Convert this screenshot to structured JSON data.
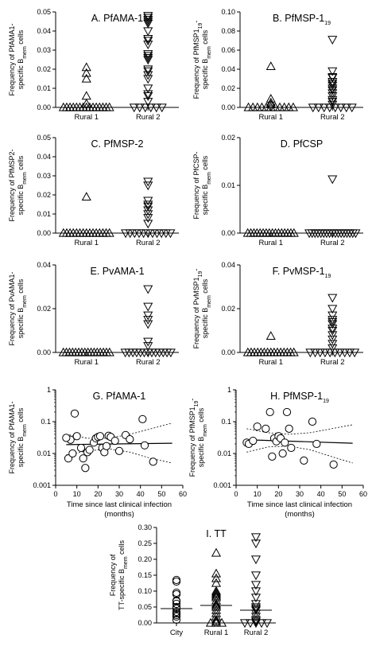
{
  "chart_data": [
    {
      "type": "scatter",
      "title": "A. PfAMA-1",
      "ylabel_line1": "Frequency of PfAMA1-",
      "ylabel_line2": "specific B",
      "ylabel_sub": "mem",
      "ylabel_tail": " cells",
      "ylim": [
        0,
        0.05
      ],
      "yticks": [
        "0.00",
        "0.01",
        "0.02",
        "0.03",
        "0.04",
        "0.05"
      ],
      "categories": [
        "Rural 1",
        "Rural 2"
      ],
      "markers": [
        "triangle-up",
        "triangle-down"
      ],
      "series": [
        {
          "values": [
            0.021,
            0.018,
            0.015,
            0.006,
            0.002,
            0.0,
            0.0,
            0.0,
            0.0,
            0.0,
            0.0,
            0.0,
            0.0,
            0.0,
            0.0,
            0.0,
            0.0,
            0.0,
            0.0,
            0.0
          ]
        },
        {
          "values": [
            0.048,
            0.047,
            0.046,
            0.045,
            0.044,
            0.04,
            0.036,
            0.035,
            0.033,
            0.028,
            0.027,
            0.026,
            0.025,
            0.02,
            0.019,
            0.017,
            0.015,
            0.01,
            0.007,
            0.006,
            0.003,
            0.0,
            0.0,
            0.0,
            0.0,
            0.0,
            0.0
          ]
        }
      ]
    },
    {
      "type": "scatter",
      "title": "B. PfMSP-1",
      "title_sub": "19",
      "ylabel_line1": "Frequency of PfMSP1",
      "ylabel_line1_sub": "19",
      "ylabel_line1_tail": "-",
      "ylabel_line2": "specific B",
      "ylabel_sub": "mem",
      "ylabel_tail": " cells",
      "ylim": [
        0,
        0.1
      ],
      "yticks": [
        "0.00",
        "0.02",
        "0.04",
        "0.06",
        "0.08",
        "0.10"
      ],
      "categories": [
        "Rural 1",
        "Rural 2"
      ],
      "markers": [
        "triangle-up",
        "triangle-down"
      ],
      "series": [
        {
          "values": [
            0.043,
            0.009,
            0.005,
            0.003,
            0.0,
            0.0,
            0.0,
            0.0,
            0.0,
            0.0,
            0.0,
            0.0,
            0.0,
            0.0,
            0.0
          ]
        },
        {
          "values": [
            0.071,
            0.038,
            0.032,
            0.031,
            0.027,
            0.025,
            0.023,
            0.02,
            0.018,
            0.015,
            0.012,
            0.008,
            0.006,
            0.003,
            0.0,
            0.0,
            0.0,
            0.0,
            0.0,
            0.0,
            0.0,
            0.0
          ]
        }
      ]
    },
    {
      "type": "scatter",
      "title": "C. PfMSP-2",
      "ylabel_line1": "Frequency of PfMSP2-",
      "ylabel_line2": "specific B",
      "ylabel_sub": "mem",
      "ylabel_tail": " cells",
      "ylim": [
        0,
        0.05
      ],
      "yticks": [
        "0.00",
        "0.01",
        "0.02",
        "0.03",
        "0.04",
        "0.05"
      ],
      "categories": [
        "Rural 1",
        "Rural 2"
      ],
      "markers": [
        "triangle-up",
        "triangle-down"
      ],
      "series": [
        {
          "values": [
            0.019,
            0.0,
            0.0,
            0.0,
            0.0,
            0.0,
            0.0,
            0.0,
            0.0,
            0.0,
            0.0,
            0.0,
            0.0,
            0.0,
            0.0,
            0.0
          ]
        },
        {
          "values": [
            0.027,
            0.025,
            0.017,
            0.015,
            0.014,
            0.012,
            0.01,
            0.008,
            0.005,
            0.0,
            0.0,
            0.0,
            0.0,
            0.0,
            0.0,
            0.0,
            0.0,
            0.0,
            0.0,
            0.0
          ]
        }
      ]
    },
    {
      "type": "scatter",
      "title": "D. PfCSP",
      "ylabel_line1": "Frequency of PfCSP-",
      "ylabel_line2": "specific B",
      "ylabel_sub": "mem",
      "ylabel_tail": " cells",
      "ylim": [
        0,
        0.02
      ],
      "yticks": [
        "0.00",
        "0.01",
        "0.02"
      ],
      "categories": [
        "Rural 1",
        "Rural 2"
      ],
      "markers": [
        "triangle-up",
        "triangle-down"
      ],
      "series": [
        {
          "values": [
            0.0,
            0.0,
            0.0,
            0.0,
            0.0,
            0.0,
            0.0,
            0.0,
            0.0,
            0.0,
            0.0,
            0.0,
            0.0,
            0.0,
            0.0,
            0.0
          ]
        },
        {
          "values": [
            0.0113,
            0.0,
            0.0,
            0.0,
            0.0,
            0.0,
            0.0,
            0.0,
            0.0,
            0.0,
            0.0,
            0.0,
            0.0,
            0.0,
            0.0,
            0.0,
            0.0,
            0.0
          ]
        }
      ]
    },
    {
      "type": "scatter",
      "title": "E. PvAMA-1",
      "ylabel_line1": "Frequency of PvAMA1-",
      "ylabel_line2": "specific B",
      "ylabel_sub": "mem",
      "ylabel_tail": " cells",
      "ylim": [
        0,
        0.04
      ],
      "yticks": [
        "0.00",
        "0.02",
        "0.04"
      ],
      "categories": [
        "Rural 1",
        "Rural 2"
      ],
      "markers": [
        "triangle-up",
        "triangle-down"
      ],
      "series": [
        {
          "values": [
            0.0,
            0.0,
            0.0,
            0.0,
            0.0,
            0.0,
            0.0,
            0.0,
            0.0,
            0.0,
            0.0,
            0.0,
            0.0,
            0.0,
            0.0,
            0.0
          ]
        },
        {
          "values": [
            0.029,
            0.021,
            0.017,
            0.015,
            0.013,
            0.005,
            0.003,
            0.0,
            0.0,
            0.0,
            0.0,
            0.0,
            0.0,
            0.0,
            0.0,
            0.0,
            0.0,
            0.0,
            0.0,
            0.0
          ]
        }
      ]
    },
    {
      "type": "scatter",
      "title": "F. PvMSP-1",
      "title_sub": "19",
      "ylabel_line1": "Frequency of PvMSP1",
      "ylabel_line1_sub": "19",
      "ylabel_line1_tail": "-",
      "ylabel_line2": "specific B",
      "ylabel_sub": "mem",
      "ylabel_tail": " cells",
      "ylim": [
        0,
        0.04
      ],
      "yticks": [
        "0.00",
        "0.02",
        "0.04"
      ],
      "categories": [
        "Rural 1",
        "Rural 2"
      ],
      "markers": [
        "triangle-up",
        "triangle-down"
      ],
      "series": [
        {
          "values": [
            0.0075,
            0.0,
            0.0,
            0.0,
            0.0,
            0.0,
            0.0,
            0.0,
            0.0,
            0.0,
            0.0,
            0.0,
            0.0,
            0.0,
            0.0,
            0.0
          ]
        },
        {
          "values": [
            0.025,
            0.02,
            0.017,
            0.015,
            0.014,
            0.013,
            0.011,
            0.01,
            0.008,
            0.006,
            0.004,
            0.002,
            0.0,
            0.0,
            0.0,
            0.0,
            0.0,
            0.0,
            0.0,
            0.0,
            0.0,
            0.0
          ]
        }
      ]
    },
    {
      "type": "scatter",
      "title": "G. PfAMA-1",
      "ylabel_line1": "Frequency of PfAMA1-",
      "ylabel_line2": "specific B",
      "ylabel_sub": "mem",
      "ylabel_tail": " cells",
      "xlabel_line1": "Time since last clinical infection",
      "xlabel_line2": "(months)",
      "xlim": [
        0,
        60
      ],
      "xticks": [
        "0",
        "10",
        "20",
        "30",
        "40",
        "50",
        "60"
      ],
      "ylim": [
        0.001,
        1
      ],
      "ylog": true,
      "yticks": [
        "0.001",
        "0.01",
        "0.1",
        "1"
      ],
      "points": [
        [
          7,
          0.027
        ],
        [
          9,
          0.18
        ],
        [
          5,
          0.031
        ],
        [
          6,
          0.007
        ],
        [
          10,
          0.035
        ],
        [
          12,
          0.015
        ],
        [
          13,
          0.007
        ],
        [
          14,
          0.0035
        ],
        [
          15,
          0.011
        ],
        [
          16,
          0.013
        ],
        [
          18,
          0.022
        ],
        [
          19,
          0.03
        ],
        [
          20,
          0.033
        ],
        [
          21,
          0.035
        ],
        [
          22,
          0.015
        ],
        [
          23,
          0.011
        ],
        [
          24,
          0.017
        ],
        [
          25,
          0.036
        ],
        [
          26,
          0.033
        ],
        [
          28,
          0.025
        ],
        [
          30,
          0.012
        ],
        [
          33,
          0.038
        ],
        [
          35,
          0.028
        ],
        [
          41,
          0.12
        ],
        [
          42,
          0.018
        ],
        [
          46,
          0.0055
        ],
        [
          8,
          0.01
        ]
      ],
      "fit": {
        "x": [
          5,
          55
        ],
        "y": [
          0.019,
          0.021
        ]
      },
      "ci_upper": [
        [
          5,
          0.04
        ],
        [
          15,
          0.03
        ],
        [
          25,
          0.03
        ],
        [
          35,
          0.04
        ],
        [
          45,
          0.06
        ],
        [
          55,
          0.09
        ]
      ],
      "ci_lower": [
        [
          5,
          0.009
        ],
        [
          15,
          0.012
        ],
        [
          25,
          0.014
        ],
        [
          35,
          0.011
        ],
        [
          45,
          0.007
        ],
        [
          55,
          0.005
        ]
      ]
    },
    {
      "type": "scatter",
      "title": "H. PfMSP-1",
      "title_sub": "19",
      "ylabel_line1": "Frequency of PfMSP1",
      "ylabel_line1_sub": "19",
      "ylabel_line1_tail": "-",
      "ylabel_line2": "specific B",
      "ylabel_sub": "mem",
      "ylabel_tail": " cells",
      "xlabel_line1": "Time since last clinical infection",
      "xlabel_line2": "(months)",
      "xlim": [
        0,
        60
      ],
      "xticks": [
        "0",
        "10",
        "20",
        "30",
        "40",
        "50",
        "60"
      ],
      "ylim": [
        0.001,
        1
      ],
      "ylog": true,
      "yticks": [
        "0.001",
        "0.01",
        "0.1",
        "1"
      ],
      "points": [
        [
          5,
          0.022
        ],
        [
          6,
          0.02
        ],
        [
          8,
          0.025
        ],
        [
          10,
          0.07
        ],
        [
          14,
          0.06
        ],
        [
          16,
          0.2
        ],
        [
          17,
          0.008
        ],
        [
          18,
          0.03
        ],
        [
          19,
          0.024
        ],
        [
          20,
          0.035
        ],
        [
          21,
          0.03
        ],
        [
          22,
          0.01
        ],
        [
          23,
          0.022
        ],
        [
          24,
          0.2
        ],
        [
          25,
          0.06
        ],
        [
          26,
          0.015
        ],
        [
          32,
          0.006
        ],
        [
          36,
          0.1
        ],
        [
          38,
          0.02
        ],
        [
          46,
          0.0045
        ]
      ],
      "fit": {
        "x": [
          5,
          55
        ],
        "y": [
          0.027,
          0.021
        ]
      },
      "ci_upper": [
        [
          5,
          0.06
        ],
        [
          15,
          0.045
        ],
        [
          25,
          0.04
        ],
        [
          35,
          0.045
        ],
        [
          45,
          0.06
        ],
        [
          55,
          0.08
        ]
      ],
      "ci_lower": [
        [
          5,
          0.011
        ],
        [
          15,
          0.016
        ],
        [
          25,
          0.017
        ],
        [
          35,
          0.013
        ],
        [
          45,
          0.008
        ],
        [
          55,
          0.005
        ]
      ]
    },
    {
      "type": "scatter",
      "title": "I. TT",
      "ylabel_line1": "Frequency of",
      "ylabel_line2": "TT-specific B",
      "ylabel_sub": "mem",
      "ylabel_tail": " cells",
      "ylim": [
        0,
        0.3
      ],
      "yticks": [
        "0.00",
        "0.05",
        "0.10",
        "0.15",
        "0.20",
        "0.25",
        "0.30"
      ],
      "categories": [
        "City",
        "Rural 1",
        "Rural 2"
      ],
      "markers": [
        "circle",
        "triangle-up",
        "triangle-down"
      ],
      "medians": [
        0.045,
        0.055,
        0.04
      ],
      "series": [
        {
          "values": [
            0.135,
            0.13,
            0.095,
            0.09,
            0.07,
            0.068,
            0.06,
            0.05,
            0.045,
            0.035,
            0.03,
            0.025,
            0.02,
            0.01
          ]
        },
        {
          "values": [
            0.22,
            0.155,
            0.14,
            0.125,
            0.1,
            0.095,
            0.09,
            0.085,
            0.08,
            0.07,
            0.06,
            0.055,
            0.05,
            0.04,
            0.03,
            0.02,
            0.01,
            0.005,
            0.0,
            0.0,
            0.0
          ]
        },
        {
          "values": [
            0.27,
            0.25,
            0.2,
            0.15,
            0.12,
            0.1,
            0.08,
            0.06,
            0.05,
            0.045,
            0.04,
            0.03,
            0.02,
            0.01,
            0.005,
            0.0,
            0.0,
            0.0,
            0.0,
            0.0
          ]
        }
      ]
    }
  ]
}
